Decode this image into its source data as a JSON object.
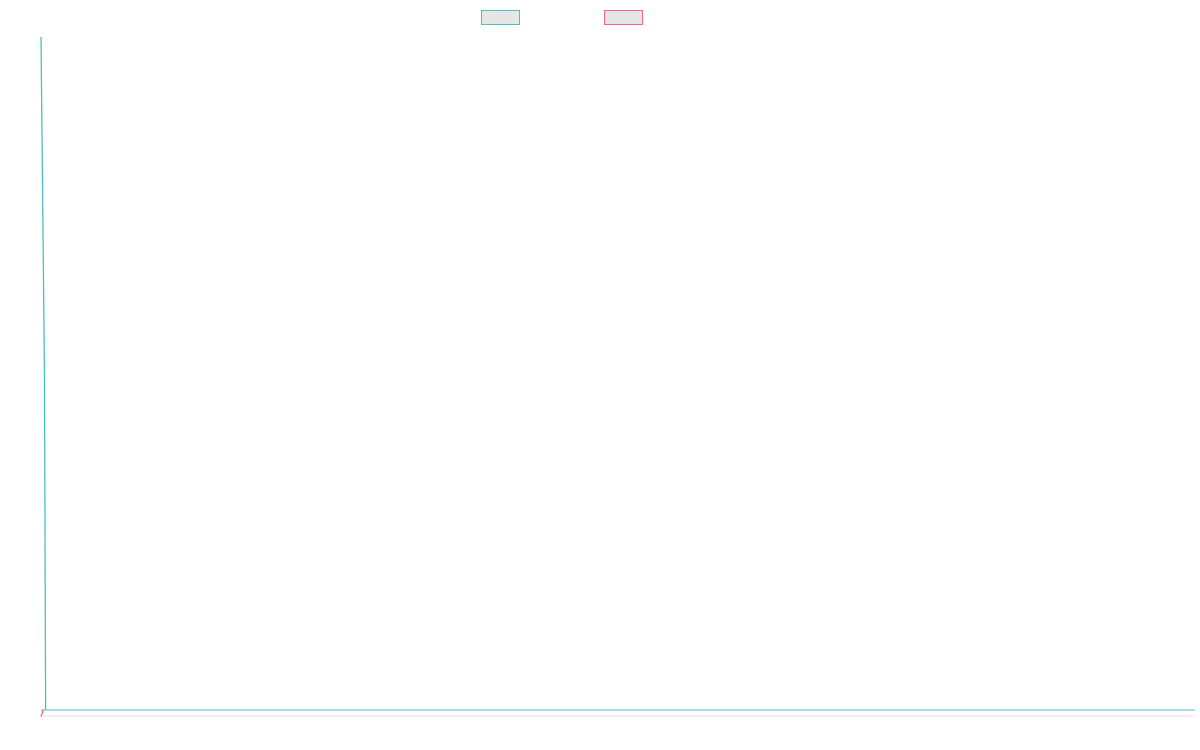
{
  "chart_data": {
    "type": "line",
    "title": "",
    "xlabel": "",
    "ylabel": "",
    "grid": false,
    "legend_position": "top-center",
    "series": [
      {
        "color": "#4bc0c0",
        "fill_color": "#e6e6e6",
        "points": [
          [
            0,
            1
          ],
          [
            0.003,
            0.5
          ],
          [
            0.004,
            0
          ]
        ]
      },
      {
        "color": "#ff6384",
        "fill_color": "#e6e6e6",
        "points": [
          [
            0,
            -0.01
          ],
          [
            0.002,
            0
          ]
        ]
      }
    ],
    "x_axis_line": {
      "color": "#4bc0c0"
    },
    "x_range": [
      0,
      1
    ],
    "y_range": [
      0,
      1
    ]
  }
}
